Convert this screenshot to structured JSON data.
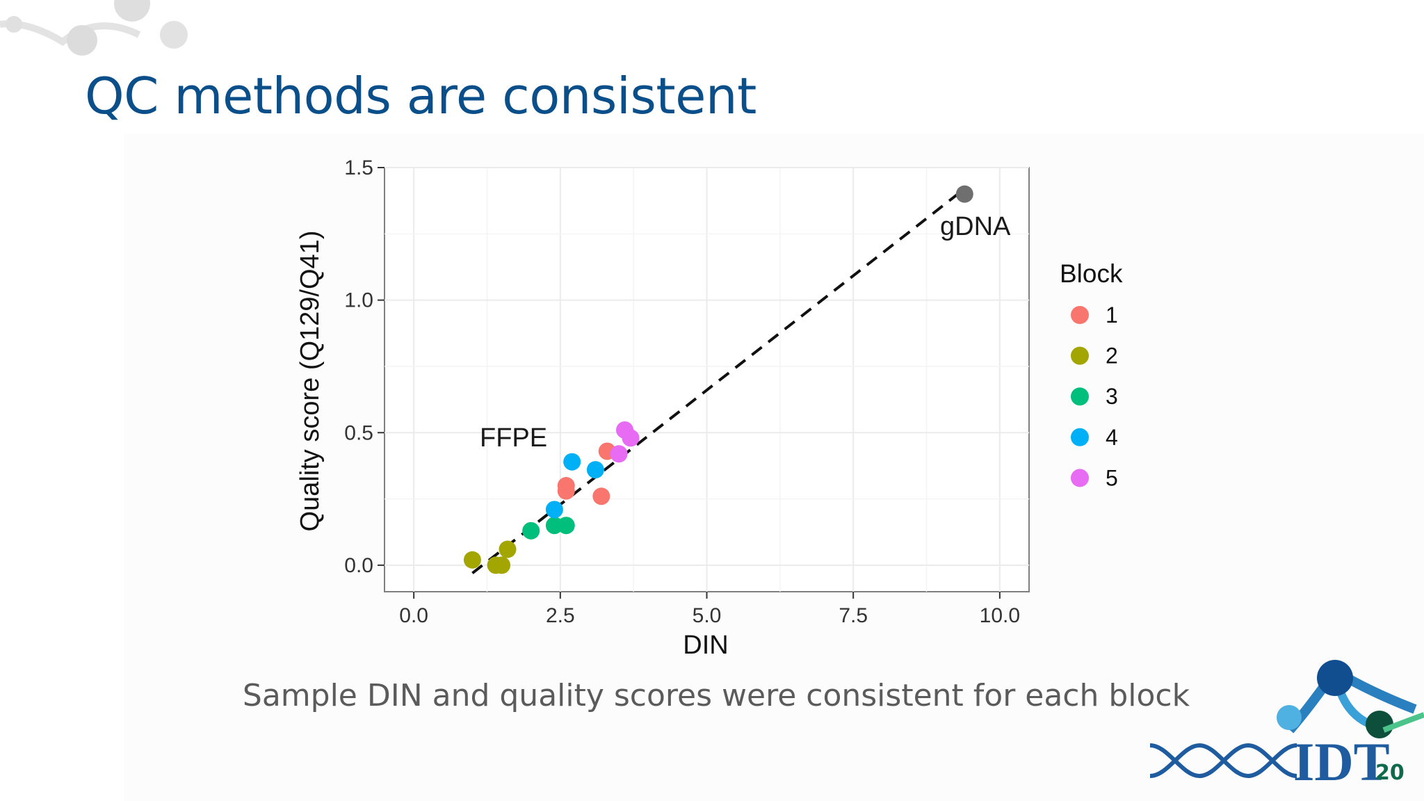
{
  "slide": {
    "title": "QC methods are consistent",
    "caption": "Sample DIN and quality scores were consistent for each block",
    "page_number": "20",
    "logo_text": "IDT"
  },
  "colors": {
    "title": "#0b4f8a",
    "block_1": "#f8766d",
    "block_2": "#a3a500",
    "block_3": "#00bf7d",
    "block_4": "#00b0f6",
    "block_5": "#e76bf3",
    "gdna": "#6f6f6f"
  },
  "chart_data": {
    "type": "scatter",
    "xlabel": "DIN",
    "ylabel": "Quality score (Q129/Q41)",
    "xlim": [
      -0.5,
      10.5
    ],
    "ylim": [
      -0.1,
      1.5
    ],
    "xticks": [
      "0.0",
      "2.5",
      "5.0",
      "7.5",
      "10.0"
    ],
    "yticks": [
      "0.0",
      "0.5",
      "1.0",
      "1.5"
    ],
    "grid": true,
    "legend": {
      "title": "Block",
      "placement": "right",
      "entries": [
        "1",
        "2",
        "3",
        "4",
        "5"
      ]
    },
    "annotations": [
      "FFPE",
      "gDNA"
    ],
    "trend_line": {
      "style": "dashed",
      "from": [
        1.0,
        -0.03
      ],
      "to": [
        9.4,
        1.42
      ]
    },
    "series": [
      {
        "name": "1",
        "color": "#f8766d",
        "points": [
          [
            2.6,
            0.3
          ],
          [
            2.6,
            0.28
          ],
          [
            3.3,
            0.43
          ],
          [
            3.2,
            0.26
          ]
        ]
      },
      {
        "name": "2",
        "color": "#a3a500",
        "points": [
          [
            1.0,
            0.02
          ],
          [
            1.4,
            0.0
          ],
          [
            1.5,
            0.0
          ],
          [
            1.6,
            0.06
          ]
        ]
      },
      {
        "name": "3",
        "color": "#00bf7d",
        "points": [
          [
            2.0,
            0.13
          ],
          [
            2.4,
            0.15
          ],
          [
            2.6,
            0.15
          ]
        ]
      },
      {
        "name": "4",
        "color": "#00b0f6",
        "points": [
          [
            2.4,
            0.21
          ],
          [
            2.7,
            0.39
          ],
          [
            3.1,
            0.36
          ]
        ]
      },
      {
        "name": "5",
        "color": "#e76bf3",
        "points": [
          [
            3.5,
            0.42
          ],
          [
            3.6,
            0.51
          ],
          [
            3.7,
            0.48
          ]
        ]
      },
      {
        "name": "gDNA",
        "color": "#6f6f6f",
        "points": [
          [
            9.4,
            1.4
          ]
        ]
      }
    ]
  }
}
